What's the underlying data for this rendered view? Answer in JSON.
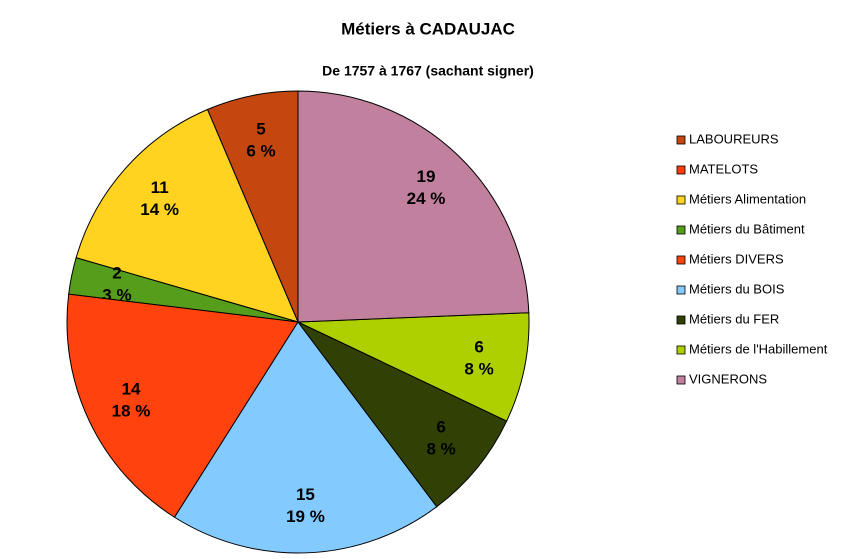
{
  "chart_data": {
    "type": "pie",
    "title": "Métiers à CADAUJAC",
    "subtitle": "De 1757  à  1767 (sachant signer)",
    "categories": [
      "LABOUREURS",
      "MATELOTS",
      "Métiers Alimentation",
      "Métiers du Bâtiment",
      "Métiers DIVERS",
      "Métiers du BOIS",
      "Métiers du FER",
      "Métiers de l'Habillement",
      "VIGNERONS"
    ],
    "values": [
      5,
      0,
      11,
      2,
      14,
      15,
      6,
      6,
      19
    ],
    "percent_labels": [
      "6 %",
      null,
      "14 %",
      "3 %",
      "18 %",
      "19 %",
      "8 %",
      "8 %",
      "24 %"
    ],
    "colors": [
      "#c4470f",
      "#ff3c0a",
      "#ffd320",
      "#579d1c",
      "#ff420e",
      "#83caff",
      "#314004",
      "#aecf00",
      "#c0809e"
    ],
    "direction": "counterclockwise",
    "start": "top",
    "legend": "right"
  }
}
